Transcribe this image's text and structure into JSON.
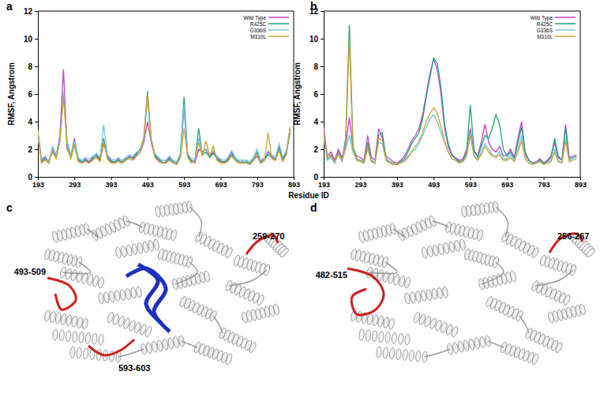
{
  "chart_data": [
    {
      "type": "line",
      "title": "a",
      "x_label": "Residue ID",
      "y_label": "RMSF, Angstrom",
      "x": [
        193,
        203,
        213,
        223,
        233,
        243,
        253,
        263,
        273,
        283,
        293,
        303,
        313,
        323,
        333,
        343,
        353,
        363,
        373,
        383,
        393,
        403,
        413,
        423,
        433,
        443,
        453,
        463,
        473,
        483,
        493,
        503,
        513,
        523,
        533,
        543,
        553,
        563,
        573,
        583,
        593,
        603,
        613,
        623,
        633,
        643,
        653,
        663,
        673,
        683,
        693,
        703,
        713,
        723,
        733,
        743,
        753,
        763,
        773,
        783,
        793,
        803,
        813,
        823,
        833,
        843,
        853,
        863,
        873,
        883
      ],
      "xlim": [
        193,
        893
      ],
      "xticks": [
        193,
        293,
        393,
        493,
        593,
        693,
        793,
        893
      ],
      "ylim": [
        0,
        12
      ],
      "yticks": [
        0,
        2,
        4,
        6,
        8,
        10,
        12
      ],
      "grid": false,
      "legend": "upper right",
      "series": [
        {
          "name": "Wild Type",
          "color": "#c040c8",
          "values": [
            3.2,
            1.2,
            1.4,
            1.0,
            2.0,
            1.5,
            3.0,
            7.8,
            2.0,
            1.5,
            2.8,
            1.2,
            1.0,
            1.3,
            1.1,
            1.4,
            1.5,
            1.2,
            2.4,
            1.5,
            1.2,
            1.0,
            1.3,
            1.0,
            1.2,
            1.5,
            1.3,
            1.6,
            1.8,
            2.5,
            4.0,
            2.5,
            1.5,
            1.2,
            1.0,
            1.1,
            1.4,
            1.0,
            0.9,
            1.5,
            5.0,
            1.5,
            1.2,
            1.0,
            2.0,
            1.8,
            2.0,
            1.5,
            1.8,
            1.4,
            1.2,
            1.0,
            1.3,
            1.8,
            1.2,
            1.0,
            1.1,
            1.0,
            0.9,
            1.2,
            1.5,
            1.0,
            1.2,
            1.8,
            1.5,
            1.2,
            2.2,
            1.3,
            1.8,
            3.5
          ]
        },
        {
          "name": "R425C",
          "color": "#20a080",
          "values": [
            3.0,
            1.1,
            1.3,
            1.2,
            1.8,
            1.4,
            2.6,
            6.0,
            2.4,
            1.4,
            2.5,
            1.3,
            1.1,
            1.2,
            1.0,
            1.3,
            1.6,
            1.3,
            2.8,
            1.4,
            1.1,
            1.1,
            1.2,
            1.1,
            1.3,
            1.4,
            1.4,
            1.7,
            2.0,
            2.8,
            6.2,
            2.7,
            1.6,
            1.3,
            1.1,
            1.0,
            1.3,
            1.1,
            1.0,
            1.6,
            5.8,
            1.6,
            1.1,
            1.2,
            3.5,
            1.6,
            1.8,
            1.4,
            1.7,
            1.3,
            1.1,
            1.1,
            1.2,
            1.6,
            1.3,
            1.1,
            1.0,
            1.1,
            1.0,
            1.3,
            1.8,
            1.1,
            1.3,
            1.6,
            1.4,
            1.3,
            2.0,
            1.2,
            1.7,
            3.2
          ]
        },
        {
          "name": "G336S",
          "color": "#70c8e0",
          "values": [
            2.8,
            1.3,
            1.5,
            1.1,
            2.2,
            1.6,
            2.8,
            6.2,
            2.6,
            1.6,
            2.6,
            1.4,
            1.2,
            1.4,
            1.3,
            1.5,
            1.7,
            1.4,
            3.8,
            1.6,
            1.3,
            1.2,
            1.4,
            1.2,
            1.4,
            1.6,
            1.5,
            1.8,
            1.9,
            2.7,
            5.6,
            2.6,
            1.7,
            1.4,
            1.2,
            1.2,
            1.5,
            1.2,
            1.1,
            1.7,
            5.2,
            1.7,
            1.3,
            1.3,
            2.8,
            1.7,
            2.0,
            1.6,
            1.9,
            1.5,
            1.3,
            1.2,
            1.4,
            1.9,
            1.4,
            1.2,
            1.2,
            1.2,
            1.1,
            1.4,
            2.0,
            1.2,
            1.4,
            1.9,
            1.6,
            1.4,
            2.4,
            1.4,
            1.9,
            3.4
          ]
        },
        {
          "name": "M310L",
          "color": "#d0a030",
          "values": [
            3.4,
            1.0,
            1.2,
            1.0,
            1.9,
            1.3,
            2.5,
            5.8,
            2.2,
            1.3,
            2.3,
            1.1,
            1.0,
            1.1,
            1.0,
            1.2,
            1.4,
            1.1,
            2.6,
            1.3,
            1.0,
            1.0,
            1.1,
            1.0,
            1.2,
            1.3,
            1.2,
            1.5,
            1.8,
            2.9,
            6.0,
            2.8,
            1.4,
            1.1,
            1.0,
            1.0,
            1.2,
            1.0,
            0.9,
            1.4,
            3.5,
            1.4,
            1.0,
            1.1,
            2.5,
            1.5,
            2.6,
            1.5,
            2.2,
            1.2,
            1.0,
            1.0,
            1.1,
            1.5,
            1.2,
            1.0,
            1.0,
            1.0,
            0.9,
            1.2,
            1.6,
            1.0,
            1.2,
            3.2,
            1.3,
            1.2,
            1.9,
            1.1,
            1.6,
            3.6
          ]
        }
      ]
    },
    {
      "type": "line",
      "title": "b",
      "y_label": "RMSF, Angstrom",
      "x": [
        193,
        203,
        213,
        223,
        233,
        243,
        253,
        263,
        273,
        283,
        293,
        303,
        313,
        323,
        333,
        343,
        353,
        363,
        373,
        383,
        393,
        403,
        413,
        423,
        433,
        443,
        453,
        463,
        473,
        483,
        493,
        503,
        513,
        523,
        533,
        543,
        553,
        563,
        573,
        583,
        593,
        603,
        613,
        623,
        633,
        643,
        653,
        663,
        673,
        683,
        693,
        703,
        713,
        723,
        733,
        743,
        753,
        763,
        773,
        783,
        793,
        803,
        813,
        823,
        833,
        843,
        853,
        863,
        873,
        883
      ],
      "xlim": [
        193,
        893
      ],
      "xticks": [
        193,
        293,
        393,
        493,
        593,
        693,
        793,
        893
      ],
      "ylim": [
        0,
        12
      ],
      "yticks": [
        0,
        2,
        4,
        6,
        8,
        10,
        12
      ],
      "grid": false,
      "legend": "upper right",
      "series": [
        {
          "name": "Wild Type",
          "color": "#c040c8",
          "values": [
            3.6,
            1.5,
            1.8,
            1.2,
            2.0,
            1.4,
            2.2,
            4.3,
            2.0,
            1.5,
            1.4,
            1.2,
            3.0,
            1.4,
            1.2,
            3.5,
            2.8,
            1.5,
            1.3,
            1.1,
            1.0,
            1.2,
            1.5,
            2.0,
            2.6,
            3.0,
            3.5,
            4.5,
            6.0,
            7.5,
            8.5,
            7.8,
            6.0,
            3.5,
            2.2,
            1.5,
            1.4,
            1.2,
            1.3,
            2.0,
            3.5,
            1.8,
            1.5,
            2.5,
            3.8,
            2.5,
            2.0,
            1.8,
            2.2,
            1.5,
            1.6,
            2.0,
            1.4,
            2.8,
            4.0,
            1.6,
            1.2,
            1.0,
            1.1,
            1.3,
            1.0,
            1.2,
            1.5,
            2.5,
            1.4,
            1.2,
            3.8,
            1.4,
            1.5,
            1.6
          ]
        },
        {
          "name": "R425C",
          "color": "#20a080",
          "values": [
            3.0,
            1.3,
            1.6,
            1.0,
            1.8,
            1.2,
            2.8,
            11.0,
            2.2,
            1.3,
            1.2,
            1.1,
            2.5,
            1.2,
            1.0,
            3.0,
            3.2,
            1.3,
            1.1,
            1.0,
            0.9,
            1.1,
            1.3,
            1.8,
            2.4,
            2.8,
            3.2,
            4.2,
            5.8,
            7.2,
            8.6,
            8.2,
            6.5,
            3.8,
            2.4,
            1.6,
            1.3,
            1.1,
            1.2,
            1.8,
            5.2,
            2.0,
            1.4,
            2.2,
            3.0,
            2.8,
            3.5,
            4.5,
            3.8,
            2.0,
            1.5,
            1.8,
            1.3,
            2.5,
            3.6,
            1.8,
            1.2,
            1.0,
            1.0,
            1.2,
            1.0,
            1.1,
            1.4,
            2.8,
            1.5,
            1.2,
            3.5,
            1.3,
            1.4,
            1.5
          ]
        },
        {
          "name": "G336S",
          "color": "#70c8e0",
          "values": [
            2.8,
            1.2,
            1.4,
            1.0,
            1.6,
            1.1,
            2.0,
            3.0,
            1.8,
            1.2,
            1.1,
            1.0,
            2.0,
            1.1,
            1.0,
            2.5,
            2.4,
            1.2,
            1.0,
            0.9,
            0.9,
            1.0,
            1.2,
            1.5,
            1.8,
            2.0,
            2.4,
            3.0,
            3.6,
            4.2,
            4.5,
            4.0,
            3.2,
            2.5,
            1.8,
            1.3,
            1.2,
            1.0,
            1.1,
            1.6,
            3.2,
            1.6,
            1.2,
            1.8,
            2.4,
            2.0,
            1.6,
            1.5,
            1.8,
            1.3,
            1.3,
            1.6,
            1.2,
            2.0,
            3.0,
            1.4,
            1.0,
            0.9,
            1.0,
            1.1,
            0.9,
            1.0,
            1.2,
            2.0,
            1.2,
            1.0,
            2.8,
            1.2,
            1.3,
            1.4
          ]
        },
        {
          "name": "M310L",
          "color": "#d0a030",
          "values": [
            3.2,
            1.4,
            1.5,
            1.1,
            1.7,
            1.2,
            2.4,
            10.0,
            2.0,
            1.2,
            1.1,
            1.0,
            2.2,
            1.1,
            1.0,
            2.8,
            2.6,
            1.2,
            1.0,
            0.9,
            0.9,
            1.0,
            1.1,
            1.4,
            1.8,
            2.2,
            2.6,
            3.2,
            4.0,
            4.6,
            5.0,
            4.6,
            3.6,
            2.6,
            1.8,
            1.3,
            1.2,
            1.0,
            1.1,
            1.5,
            3.0,
            1.5,
            1.2,
            1.6,
            2.2,
            1.8,
            1.5,
            1.4,
            1.6,
            1.2,
            1.2,
            1.4,
            1.1,
            1.8,
            2.6,
            1.3,
            1.0,
            0.9,
            1.0,
            1.1,
            0.9,
            1.0,
            1.1,
            1.8,
            1.1,
            1.0,
            2.6,
            1.1,
            1.2,
            1.3
          ]
        }
      ]
    }
  ],
  "structures": [
    {
      "label": "c",
      "regions": [
        "493-509",
        "593-603",
        "259-270"
      ]
    },
    {
      "label": "d",
      "regions": [
        "482-515",
        "256-267"
      ]
    }
  ]
}
